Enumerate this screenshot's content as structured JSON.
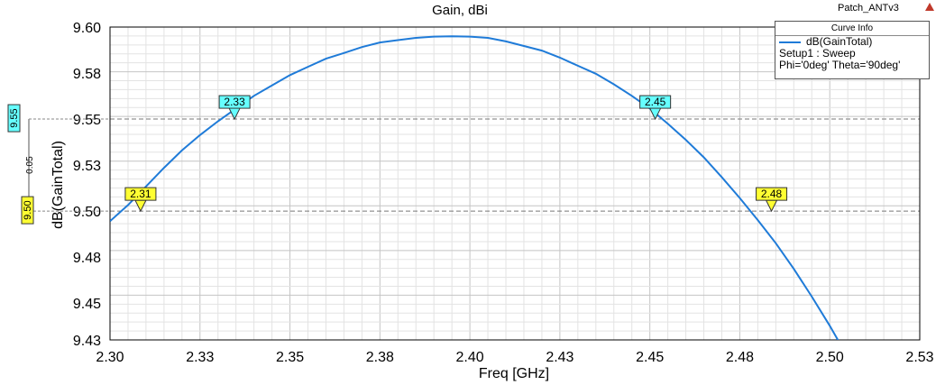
{
  "brand": "Patch_ANTv3",
  "legend": {
    "header": "Curve Info",
    "series_name": "dB(GainTotal)",
    "line2": "Setup1 : Sweep",
    "line3": "Phi='0deg' Theta='90deg'",
    "color": "#1f7bd8"
  },
  "delta_marker": {
    "top_label": "9.55",
    "bottom_label": "9.50",
    "delta_label": "0.05",
    "top_value": 9.55,
    "bottom_value": 9.5,
    "top_color": "#66ffff",
    "bottom_color": "#ffff33"
  },
  "chart_data": {
    "type": "line",
    "title": "Gain, dBi",
    "xlabel": "Freq [GHz]",
    "ylabel": "dB(GainTotal)",
    "xlim": [
      2.3,
      2.525
    ],
    "ylim": [
      9.43,
      9.6
    ],
    "x_ticks": [
      2.3,
      2.325,
      2.35,
      2.375,
      2.4,
      2.425,
      2.45,
      2.475,
      2.5,
      2.525
    ],
    "x_tick_labels": [
      "2.30",
      "2.33",
      "2.35",
      "2.38",
      "2.40",
      "2.43",
      "2.45",
      "2.48",
      "2.50",
      "2.53"
    ],
    "y_ticks": [
      9.43,
      9.45,
      9.475,
      9.5,
      9.525,
      9.55,
      9.575,
      9.6
    ],
    "y_tick_labels": [
      "9.43",
      "9.45",
      "9.48",
      "9.50",
      "9.53",
      "9.55",
      "9.58",
      "9.60"
    ],
    "grid": true,
    "legend_position": "top-right",
    "series": [
      {
        "name": "dB(GainTotal)",
        "color": "#1f7bd8",
        "x": [
          2.3,
          2.305,
          2.31,
          2.315,
          2.32,
          2.325,
          2.33,
          2.335,
          2.34,
          2.345,
          2.35,
          2.355,
          2.36,
          2.365,
          2.37,
          2.375,
          2.38,
          2.385,
          2.39,
          2.395,
          2.4,
          2.405,
          2.41,
          2.415,
          2.42,
          2.425,
          2.43,
          2.435,
          2.44,
          2.445,
          2.45,
          2.455,
          2.46,
          2.465,
          2.47,
          2.475,
          2.48,
          2.485,
          2.49,
          2.495,
          2.5,
          2.505,
          2.51
        ],
        "y": [
          9.4945,
          9.5033,
          9.5134,
          9.5235,
          9.533,
          9.5413,
          9.5488,
          9.5557,
          9.5626,
          9.5683,
          9.5739,
          9.5784,
          9.5828,
          9.5859,
          9.5891,
          9.5916,
          9.5929,
          9.5941,
          9.5948,
          9.595,
          9.5948,
          9.5941,
          9.5922,
          9.5897,
          9.5872,
          9.5834,
          9.579,
          9.5746,
          9.5689,
          9.5626,
          9.5557,
          9.5475,
          9.5387,
          9.5292,
          9.5184,
          9.5071,
          9.4951,
          9.4825,
          9.4686,
          9.4535,
          9.4377,
          9.4206,
          9.4035
        ]
      }
    ],
    "markers": [
      {
        "label": "2.31",
        "x": 2.3085,
        "y": 9.5,
        "color": "#ffff33"
      },
      {
        "label": "2.33",
        "x": 2.3346,
        "y": 9.55,
        "color": "#66ffff"
      },
      {
        "label": "2.45",
        "x": 2.4515,
        "y": 9.55,
        "color": "#66ffff"
      },
      {
        "label": "2.48",
        "x": 2.4838,
        "y": 9.5,
        "color": "#ffff33"
      }
    ]
  }
}
